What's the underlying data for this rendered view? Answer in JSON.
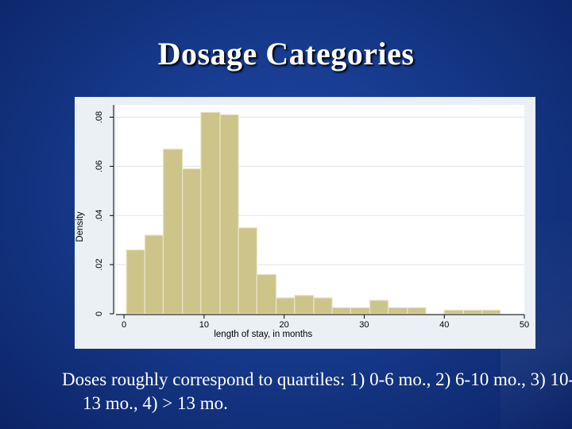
{
  "slide": {
    "title": "Dosage Categories",
    "caption": "Doses roughly correspond to quartiles: 1) 0-6 mo., 2) 6-10 mo., 3) 10-13 mo., 4) > 13 mo."
  },
  "colors": {
    "bar_fill": "#cdc48a",
    "bar_stroke": "#eae6c8",
    "plot_bg": "#ffffff",
    "panel_bg": "#eaf0f4",
    "grid": "#dde5ea",
    "axis_text": "#000000"
  },
  "chart_data": {
    "type": "bar",
    "title": "",
    "xlabel": "length of stay, in months",
    "ylabel": "Density",
    "xlim": [
      -1,
      50
    ],
    "ylim": [
      0,
      0.085
    ],
    "xticks": [
      0,
      10,
      20,
      30,
      40,
      50
    ],
    "xtick_labels": [
      "0",
      "10",
      "20",
      "30",
      "40",
      "50"
    ],
    "yticks": [
      0,
      0.02,
      0.04,
      0.06,
      0.08
    ],
    "ytick_labels": [
      "0",
      ".02",
      ".04",
      ".06",
      ".08"
    ],
    "grid": true,
    "bins": [
      {
        "x0": 0.3,
        "x1": 2.6,
        "value": 0.026
      },
      {
        "x0": 2.6,
        "x1": 4.9,
        "value": 0.032
      },
      {
        "x0": 4.9,
        "x1": 7.3,
        "value": 0.067
      },
      {
        "x0": 7.3,
        "x1": 9.6,
        "value": 0.059
      },
      {
        "x0": 9.6,
        "x1": 12.0,
        "value": 0.082
      },
      {
        "x0": 12.0,
        "x1": 14.3,
        "value": 0.081
      },
      {
        "x0": 14.3,
        "x1": 16.6,
        "value": 0.035
      },
      {
        "x0": 16.6,
        "x1": 19.0,
        "value": 0.016
      },
      {
        "x0": 19.0,
        "x1": 21.3,
        "value": 0.0065
      },
      {
        "x0": 21.3,
        "x1": 23.7,
        "value": 0.0075
      },
      {
        "x0": 23.7,
        "x1": 26.0,
        "value": 0.0065
      },
      {
        "x0": 26.0,
        "x1": 28.3,
        "value": 0.0025
      },
      {
        "x0": 28.3,
        "x1": 30.7,
        "value": 0.0025
      },
      {
        "x0": 30.7,
        "x1": 33.0,
        "value": 0.0055
      },
      {
        "x0": 33.0,
        "x1": 35.4,
        "value": 0.0025
      },
      {
        "x0": 35.4,
        "x1": 37.7,
        "value": 0.0025
      },
      {
        "x0": 37.7,
        "x1": 40.0,
        "value": 0
      },
      {
        "x0": 40.0,
        "x1": 42.4,
        "value": 0.0015
      },
      {
        "x0": 42.4,
        "x1": 44.7,
        "value": 0.0015
      },
      {
        "x0": 44.7,
        "x1": 47.0,
        "value": 0.0015
      }
    ]
  }
}
